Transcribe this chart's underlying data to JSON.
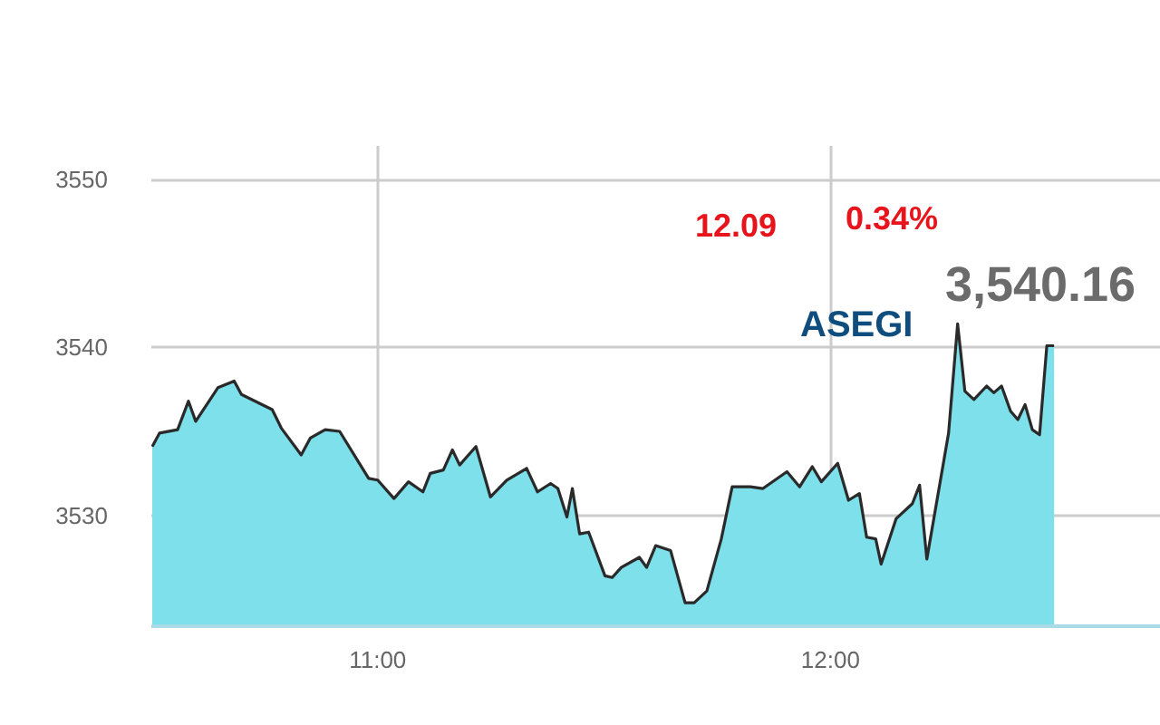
{
  "chart_data": {
    "type": "area",
    "color": "#7ee0ea",
    "x": [
      10.502,
      10.518,
      10.558,
      10.582,
      10.598,
      10.647,
      10.683,
      10.699,
      10.767,
      10.787,
      10.831,
      10.851,
      10.884,
      10.916,
      10.98,
      11.0,
      11.036,
      11.068,
      11.1,
      11.116,
      11.145,
      11.165,
      11.181,
      11.217,
      11.249,
      11.285,
      11.329,
      11.353,
      11.382,
      11.398,
      11.418,
      11.43,
      11.446,
      11.466,
      11.502,
      11.518,
      11.538,
      11.578,
      11.594,
      11.614,
      11.647,
      11.679,
      11.699,
      11.727,
      11.759,
      11.783,
      11.823,
      11.851,
      11.904,
      11.932,
      11.96,
      11.98,
      12.016,
      12.04,
      12.064,
      12.08,
      12.1,
      12.112,
      12.145,
      12.181,
      12.197,
      12.213,
      12.261,
      12.281,
      12.297,
      12.317,
      12.345,
      12.361,
      12.378,
      12.398,
      12.414,
      12.43,
      12.446,
      12.462,
      12.478,
      12.494
    ],
    "values": [
      3534.1,
      3534.9,
      3535.1,
      3536.8,
      3535.6,
      3537.6,
      3538.0,
      3537.2,
      3536.3,
      3535.2,
      3533.6,
      3534.6,
      3535.1,
      3535.0,
      3532.2,
      3532.1,
      3531.0,
      3532.0,
      3531.4,
      3532.5,
      3532.7,
      3533.9,
      3533.0,
      3534.1,
      3531.1,
      3532.1,
      3532.8,
      3531.4,
      3531.9,
      3531.6,
      3529.9,
      3531.6,
      3528.9,
      3529.0,
      3526.4,
      3526.3,
      3526.9,
      3527.5,
      3526.9,
      3528.2,
      3527.9,
      3524.8,
      3524.8,
      3525.5,
      3528.6,
      3531.7,
      3531.7,
      3531.6,
      3532.6,
      3531.7,
      3532.9,
      3532.0,
      3533.1,
      3530.9,
      3531.3,
      3528.7,
      3528.6,
      3527.1,
      3529.8,
      3530.7,
      3531.8,
      3527.4,
      3534.9,
      3541.4,
      3537.4,
      3536.9,
      3537.7,
      3537.3,
      3537.7,
      3536.2,
      3535.7,
      3536.6,
      3535.1,
      3534.8,
      3540.1,
      3540.1
    ],
    "xlim": [
      10.5,
      12.73
    ],
    "ylim": [
      3523.4,
      3552
    ],
    "xticks": [
      {
        "value": 11,
        "label": "11:00"
      },
      {
        "value": 12,
        "label": "12:00"
      }
    ],
    "yticks": [
      3530,
      3540,
      3550
    ],
    "grid": true,
    "annotations": [
      "12.09",
      "0.34%",
      "ASEGI",
      {
        "text": "3,540.16",
        "x": 12.494,
        "y": 3540.1
      }
    ]
  }
}
